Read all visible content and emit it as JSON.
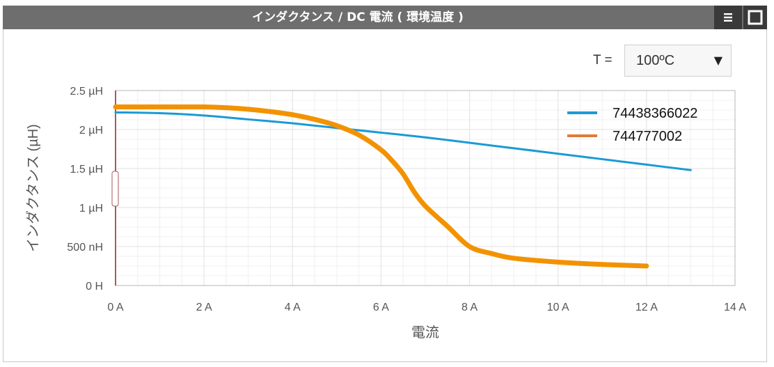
{
  "header": {
    "title": "インダクタンス / DC 電流 ( 環境温度 )",
    "menu_icon": "hamburger-menu-icon",
    "maximize_icon": "maximize-square-icon"
  },
  "controls": {
    "temp_label": "T =",
    "temp_value": "100ºC",
    "dropdown_icon": "caret-down-icon"
  },
  "colors": {
    "series_blue": "#1a9ad6",
    "series_orange": "#f39200",
    "legend_orange": "#e07b39",
    "grid": "#e6e6e6",
    "left_axis": "#a85a5a"
  },
  "chart_data": {
    "type": "line",
    "title": "インダクタンス / DC 電流 ( 環境温度 )",
    "xlabel": "電流",
    "ylabel": "インダクタンス (µH)",
    "xlim": [
      0,
      14
    ],
    "ylim": [
      0,
      2.5
    ],
    "x_ticks": [
      0,
      2,
      4,
      6,
      8,
      10,
      12,
      14
    ],
    "x_tick_labels": [
      "0 A",
      "2 A",
      "4 A",
      "6 A",
      "8 A",
      "10 A",
      "12 A",
      "14 A"
    ],
    "y_ticks": [
      0,
      0.5,
      1,
      1.5,
      2,
      2.5
    ],
    "y_tick_labels": [
      "0 H",
      "500 nH",
      "1 µH",
      "1.5 µH",
      "2 µH",
      "2.5 µH"
    ],
    "grid": true,
    "legend_position": "top-right",
    "series": [
      {
        "name": "74438366022",
        "x": [
          0,
          1,
          2,
          3,
          4,
          5,
          6,
          7,
          8,
          9,
          10,
          11,
          12,
          13
        ],
        "y": [
          2.22,
          2.21,
          2.18,
          2.13,
          2.08,
          2.02,
          1.96,
          1.9,
          1.83,
          1.76,
          1.69,
          1.62,
          1.55,
          1.48
        ]
      },
      {
        "name": "744777002",
        "x": [
          0,
          1,
          2,
          2.5,
          3,
          3.5,
          4,
          4.5,
          5,
          5.5,
          6,
          6.25,
          6.5,
          6.75,
          7,
          7.5,
          8,
          8.5,
          9,
          10,
          11,
          12
        ],
        "y": [
          2.29,
          2.29,
          2.29,
          2.28,
          2.26,
          2.23,
          2.19,
          2.13,
          2.05,
          1.93,
          1.74,
          1.6,
          1.43,
          1.2,
          1.02,
          0.76,
          0.5,
          0.41,
          0.35,
          0.3,
          0.27,
          0.25
        ]
      }
    ]
  }
}
